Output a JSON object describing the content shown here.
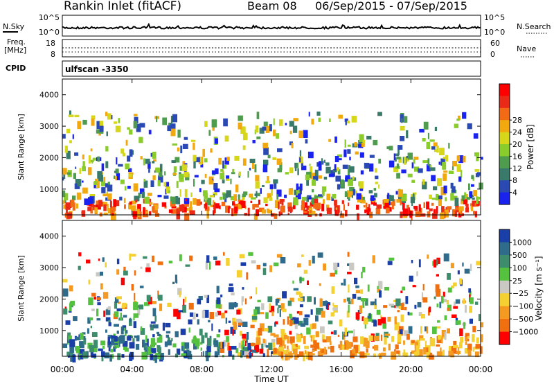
{
  "header": {
    "station": "Rankin Inlet (fitACF)",
    "beam_label": "Beam 08",
    "date_range": "06/Sep/2015 - 07/Sep/2015"
  },
  "top_panels": {
    "nsky_label": "N.Sky",
    "nsearch_label": "N.Search",
    "nsky_ticks": [
      "10^5",
      "10^0"
    ],
    "freq_label": "Freq.",
    "freq_unit": "[MHz]",
    "freq_ticks": [
      "18",
      "8"
    ],
    "nave_label": "Nave",
    "nave_ticks": [
      "60",
      "0"
    ],
    "cpid_label": "CPID",
    "cpid_value": "ulfscan -3350"
  },
  "chart_data": [
    {
      "type": "heatmap",
      "name": "power-panel",
      "ylabel": "Slant Range [km]",
      "y_ticks": [
        1000,
        2000,
        3000,
        4000
      ],
      "ylim": [
        180,
        4500
      ],
      "x_ticks": [
        0,
        4,
        8,
        12,
        16,
        20,
        24
      ],
      "colorbar": {
        "label": "Power [dB]",
        "ticks": [
          "4",
          "8",
          "12",
          "16",
          "20",
          "24",
          "28"
        ],
        "colors": [
          "#1a22ee",
          "#2a49b3",
          "#3a7a6a",
          "#4f9c4f",
          "#8acc2c",
          "#d6d61a",
          "#f2a80f",
          "#f26a14",
          "#ea2a16",
          "#ff0000"
        ]
      }
    },
    {
      "type": "heatmap",
      "name": "velocity-panel",
      "ylabel": "Slant Range [km]",
      "y_ticks": [
        1000,
        2000,
        3000,
        4000
      ],
      "ylim": [
        180,
        4500
      ],
      "x_ticks": [
        0,
        4,
        8,
        12,
        16,
        20,
        24
      ],
      "colorbar": {
        "label": "Velocity [m s⁻¹]",
        "ticks": [
          "1000",
          "500",
          "100",
          "25",
          "−25",
          "−100",
          "−500",
          "−1000"
        ],
        "colors": [
          "#1b3fa8",
          "#2f6c8c",
          "#3d8d6d",
          "#55c23f",
          "#c9c8c2",
          "#f4d030",
          "#f59a20",
          "#f07010",
          "#ff0000"
        ]
      }
    }
  ],
  "x_tick_labels": [
    "00:00",
    "04:00",
    "08:00",
    "12:00",
    "16:00",
    "20:00",
    "00:00"
  ],
  "x_axis_label": "Time UT"
}
